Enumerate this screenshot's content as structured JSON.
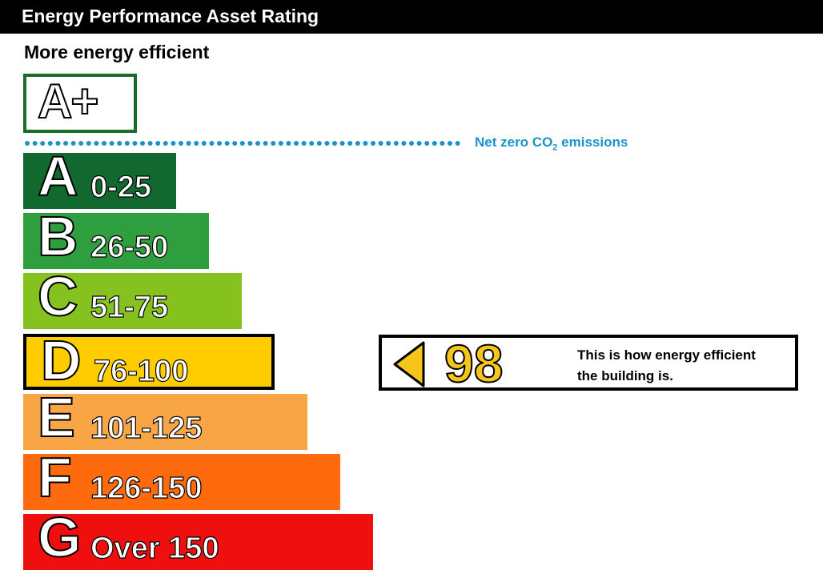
{
  "header": {
    "title": "Energy Performance Asset Rating"
  },
  "subtitle": "More energy efficient",
  "top_band": {
    "label": "A+",
    "border_color": "#1d6b2b"
  },
  "net_zero": {
    "text_main": "Net zero CO",
    "text_sub": "2",
    "text_end": " emissions",
    "color": "#1a93c9"
  },
  "chart_data": {
    "type": "bar",
    "categories": [
      "A",
      "B",
      "C",
      "D",
      "E",
      "F",
      "G"
    ],
    "ranges": [
      "0-25",
      "26-50",
      "51-75",
      "76-100",
      "101-125",
      "126-150",
      "Over 150"
    ],
    "colors": [
      "#12692f",
      "#2f9e3f",
      "#85c21f",
      "#ffcc00",
      "#f7a545",
      "#fe6a0e",
      "#f00f0f"
    ],
    "current_band": "D",
    "rating_value": 98
  },
  "rating": {
    "value": "98",
    "caption_line1": "This is how energy efficient",
    "caption_line2": "the building is."
  }
}
